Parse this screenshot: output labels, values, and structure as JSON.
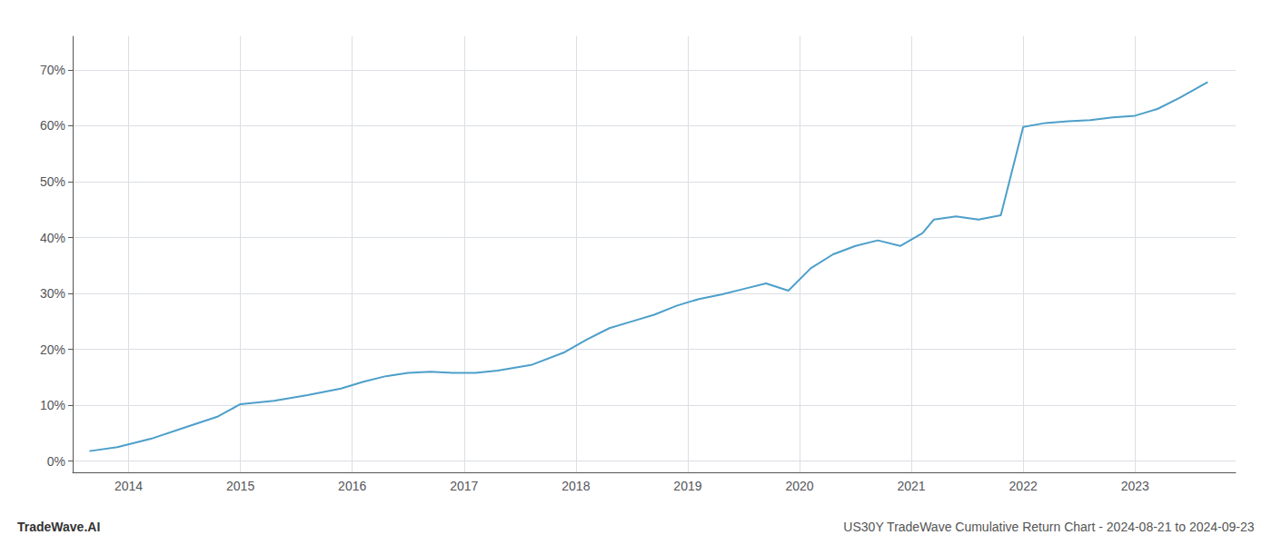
{
  "chart_data": {
    "type": "line",
    "title": "US30Y TradeWave Cumulative Return Chart - 2024-08-21 to 2024-09-23",
    "annotations": [
      "TradeWave.AI"
    ],
    "color": "#4d9fca",
    "x": [
      2013.65,
      2013.9,
      2014.2,
      2014.5,
      2014.8,
      2015.0,
      2015.3,
      2015.6,
      2015.9,
      2016.1,
      2016.3,
      2016.5,
      2016.7,
      2016.9,
      2017.1,
      2017.3,
      2017.6,
      2017.9,
      2018.1,
      2018.3,
      2018.5,
      2018.7,
      2018.9,
      2019.1,
      2019.3,
      2019.5,
      2019.7,
      2019.9,
      2020.1,
      2020.3,
      2020.5,
      2020.7,
      2020.9,
      2021.1,
      2021.2,
      2021.4,
      2021.6,
      2021.8,
      2022.0,
      2022.2,
      2022.4,
      2022.6,
      2022.8,
      2023.0,
      2023.2,
      2023.4,
      2023.65
    ],
    "values": [
      0.018,
      0.025,
      0.04,
      0.06,
      0.08,
      0.102,
      0.108,
      0.118,
      0.13,
      0.142,
      0.152,
      0.158,
      0.16,
      0.158,
      0.158,
      0.162,
      0.172,
      0.195,
      0.218,
      0.238,
      0.25,
      0.262,
      0.278,
      0.29,
      0.298,
      0.308,
      0.318,
      0.305,
      0.345,
      0.37,
      0.385,
      0.395,
      0.385,
      0.408,
      0.432,
      0.438,
      0.432,
      0.44,
      0.598,
      0.605,
      0.608,
      0.61,
      0.615,
      0.618,
      0.63,
      0.65,
      0.678
    ],
    "xlim": [
      2013.5,
      2023.9
    ],
    "ylim": [
      -0.02,
      0.76
    ],
    "xticks": [
      2014,
      2015,
      2016,
      2017,
      2018,
      2019,
      2020,
      2021,
      2022,
      2023
    ],
    "yticks": [
      {
        "value": 0.0,
        "label": "0%"
      },
      {
        "value": 0.1,
        "label": "10%"
      },
      {
        "value": 0.2,
        "label": "20%"
      },
      {
        "value": 0.3,
        "label": "30%"
      },
      {
        "value": 0.4,
        "label": "40%"
      },
      {
        "value": 0.5,
        "label": "50%"
      },
      {
        "value": 0.6,
        "label": "60%"
      },
      {
        "value": 0.7,
        "label": "70%"
      }
    ],
    "grid": true
  }
}
